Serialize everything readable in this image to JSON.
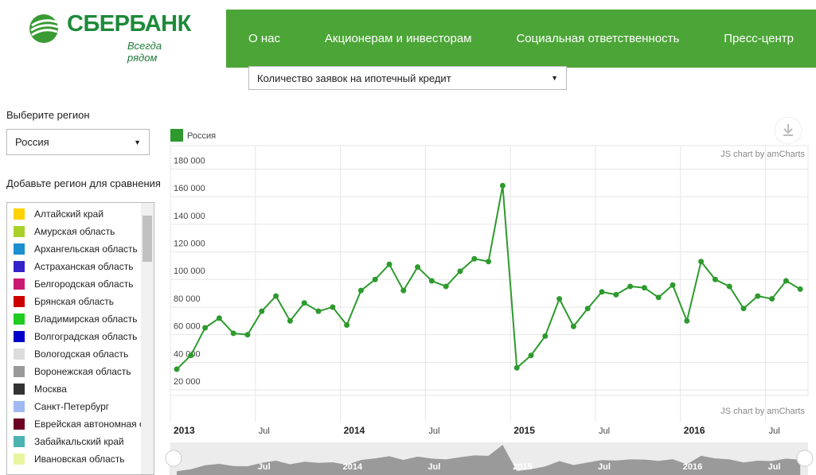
{
  "header": {
    "logo": "СБЕРБАНК",
    "slogan": "Всегда рядом",
    "nav": [
      "О нас",
      "Акционерам и инвесторам",
      "Социальная ответственность",
      "Пресс-центр"
    ]
  },
  "metric_select": "Количество заявок на ипотечный кредит",
  "sidebar": {
    "region_label": "Выберите регион",
    "region_select": "Россия",
    "compare_label": "Добавьте регион для сравнения",
    "regions": [
      {
        "name": "Алтайский край",
        "color": "#ffd200"
      },
      {
        "name": "Амурская область",
        "color": "#a9d12a"
      },
      {
        "name": "Архангельская область",
        "color": "#1c8fd0"
      },
      {
        "name": "Астраханская область",
        "color": "#3423c8"
      },
      {
        "name": "Белгородская область",
        "color": "#c91a72"
      },
      {
        "name": "Брянская область",
        "color": "#cc0000"
      },
      {
        "name": "Владимирская область",
        "color": "#1fcc1f"
      },
      {
        "name": "Волгоградская область",
        "color": "#0000c8"
      },
      {
        "name": "Вологодская область",
        "color": "#dcdcdc"
      },
      {
        "name": "Воронежская область",
        "color": "#999999"
      },
      {
        "name": "Москва",
        "color": "#333333"
      },
      {
        "name": "Санкт-Петербург",
        "color": "#a0b9f0"
      },
      {
        "name": "Еврейская автономная о",
        "color": "#6b0022"
      },
      {
        "name": "Забайкальский край",
        "color": "#4bb3b3"
      },
      {
        "name": "Ивановская область",
        "color": "#eaf5a0"
      }
    ]
  },
  "chart_data": {
    "type": "line",
    "credit": "JS chart by amCharts",
    "x": [
      "2013-01",
      "2013-02",
      "2013-03",
      "2013-04",
      "2013-05",
      "2013-06",
      "2013-07",
      "2013-08",
      "2013-09",
      "2013-10",
      "2013-11",
      "2013-12",
      "2014-01",
      "2014-02",
      "2014-03",
      "2014-04",
      "2014-05",
      "2014-06",
      "2014-07",
      "2014-08",
      "2014-09",
      "2014-10",
      "2014-11",
      "2014-12",
      "2015-01",
      "2015-02",
      "2015-03",
      "2015-04",
      "2015-05",
      "2015-06",
      "2015-07",
      "2015-08",
      "2015-09",
      "2015-10",
      "2015-11",
      "2015-12",
      "2016-01",
      "2016-02",
      "2016-03",
      "2016-04",
      "2016-05",
      "2016-06",
      "2016-07",
      "2016-08",
      "2016-09"
    ],
    "series": [
      {
        "name": "Россия",
        "color": "#2e9a2e",
        "values": [
          35000,
          45000,
          65000,
          72000,
          61000,
          60000,
          77000,
          88000,
          70000,
          83000,
          77000,
          80000,
          67000,
          92000,
          100000,
          111000,
          92000,
          109000,
          99000,
          95000,
          106000,
          115000,
          113000,
          168000,
          36000,
          45000,
          59000,
          86000,
          66000,
          79000,
          91000,
          89000,
          95000,
          94000,
          87000,
          96000,
          70000,
          113000,
          100000,
          95000,
          79000,
          88000,
          86000,
          99000,
          93000
        ]
      }
    ],
    "ylim": [
      16000,
      197000
    ],
    "yticks": [
      {
        "value": 20000,
        "label": "20 000"
      },
      {
        "value": 40000,
        "label": "40 000"
      },
      {
        "value": 60000,
        "label": "60 000"
      },
      {
        "value": 80000,
        "label": "80 000"
      },
      {
        "value": 100000,
        "label": "100 000"
      },
      {
        "value": 120000,
        "label": "120 000"
      },
      {
        "value": 140000,
        "label": "140 000"
      },
      {
        "value": 160000,
        "label": "160 000"
      },
      {
        "value": 180000,
        "label": "180 000"
      }
    ],
    "xticks": [
      {
        "value": "2013-01",
        "label": "2013"
      },
      {
        "value": "2013-07",
        "label": "Jul"
      },
      {
        "value": "2014-01",
        "label": "2014"
      },
      {
        "value": "2014-07",
        "label": "Jul"
      },
      {
        "value": "2015-01",
        "label": "2015"
      },
      {
        "value": "2015-07",
        "label": "Jul"
      },
      {
        "value": "2016-01",
        "label": "2016"
      },
      {
        "value": "2016-07",
        "label": "Jul"
      }
    ],
    "grid": true
  }
}
